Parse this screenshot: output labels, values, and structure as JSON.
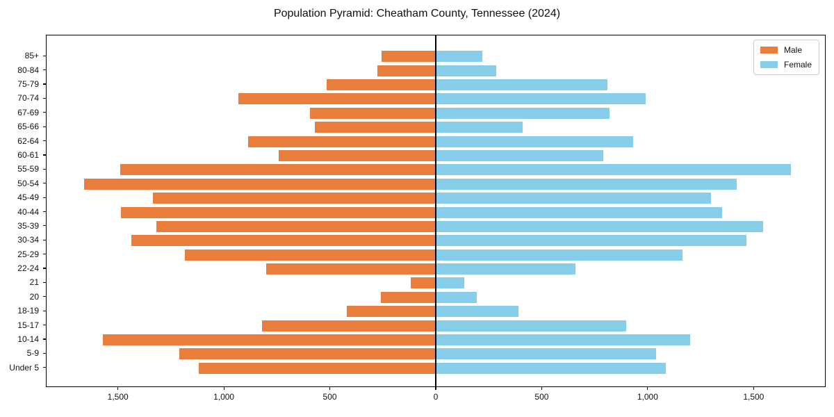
{
  "chart_data": {
    "type": "bar",
    "subtype": "population-pyramid",
    "title": "Population Pyramid: Cheatham County, Tennessee (2024)",
    "orientation": "horizontal",
    "categories_top_to_bottom": [
      "85+",
      "80-84",
      "75-79",
      "70-74",
      "67-69",
      "65-66",
      "62-64",
      "60-61",
      "55-59",
      "50-54",
      "45-49",
      "40-44",
      "35-39",
      "30-34",
      "25-29",
      "22-24",
      "21",
      "20",
      "18-19",
      "15-17",
      "10-14",
      "5-9",
      "Under 5"
    ],
    "series": [
      {
        "name": "Male",
        "side": "left",
        "color": "#e87d3c",
        "values": [
          255,
          275,
          515,
          930,
          595,
          570,
          885,
          740,
          1490,
          1660,
          1335,
          1485,
          1320,
          1435,
          1185,
          800,
          117,
          260,
          420,
          820,
          1570,
          1210,
          1120
        ]
      },
      {
        "name": "Female",
        "side": "right",
        "color": "#87ceeb",
        "values": [
          220,
          285,
          810,
          990,
          820,
          410,
          930,
          790,
          1675,
          1420,
          1300,
          1350,
          1545,
          1465,
          1165,
          660,
          134,
          195,
          390,
          900,
          1200,
          1040,
          1085
        ]
      }
    ],
    "x_axis": {
      "tick_values": [
        -1500,
        -1000,
        -500,
        0,
        500,
        1000,
        1500
      ],
      "tick_labels": [
        "1,500",
        "1,000",
        "500",
        "0",
        "500",
        "1,000",
        "1,500"
      ],
      "limit_abs": 1840,
      "grid": false
    },
    "legend": {
      "position": "upper-right",
      "entries": [
        {
          "label": "Male",
          "color": "#e87d3c"
        },
        {
          "label": "Female",
          "color": "#87ceeb"
        }
      ]
    },
    "colors": {
      "male": "#e87d3c",
      "female": "#87ceeb",
      "axis": "#000000",
      "background": "#ffffff"
    }
  }
}
